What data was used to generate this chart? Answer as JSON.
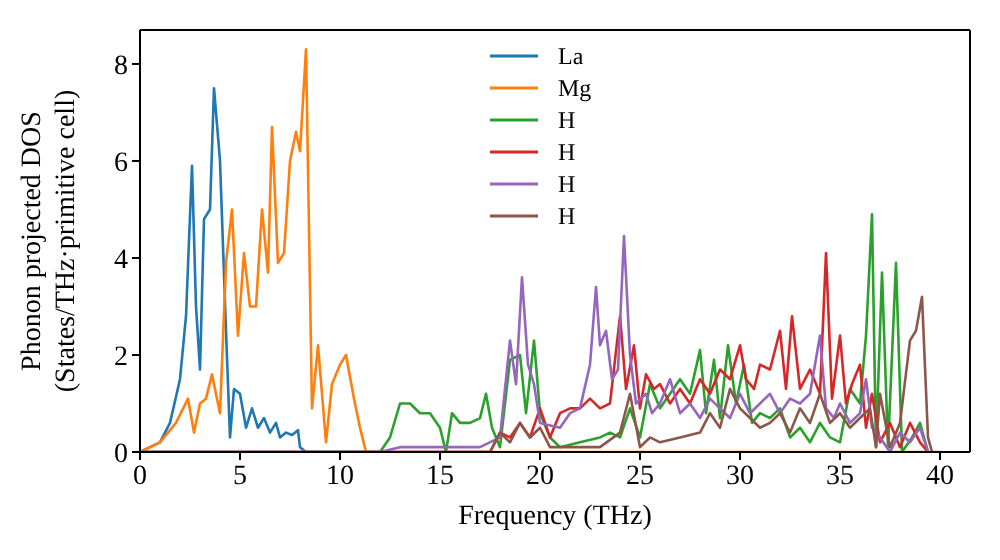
{
  "chart_data": {
    "type": "line",
    "xlabel": "Frequency (THz)",
    "ylabel": "Phonon projected DOS\n(States/THz·primitive cell)",
    "xlim": [
      0,
      41.5
    ],
    "ylim": [
      0,
      8.7
    ],
    "xticks": [
      0,
      5,
      10,
      15,
      20,
      25,
      30,
      35,
      40
    ],
    "yticks": [
      0,
      2,
      4,
      6,
      8
    ],
    "legend": "top",
    "marker": "none",
    "line_style": "solid",
    "series": [
      {
        "name": "La",
        "color": "#1f77b4",
        "x": [
          0,
          1,
          1.5,
          2,
          2.3,
          2.6,
          2.8,
          3,
          3.2,
          3.5,
          3.7,
          4,
          4.3,
          4.5,
          4.7,
          5,
          5.3,
          5.6,
          5.9,
          6.2,
          6.5,
          6.8,
          7,
          7.3,
          7.6,
          7.9,
          8,
          8.3,
          12
        ],
        "values": [
          0,
          0.2,
          0.6,
          1.5,
          2.8,
          5.9,
          3,
          1.7,
          4.8,
          5,
          7.5,
          6,
          2.5,
          0.3,
          1.3,
          1.2,
          0.5,
          0.9,
          0.5,
          0.7,
          0.4,
          0.6,
          0.3,
          0.4,
          0.35,
          0.45,
          0.1,
          0,
          0
        ]
      },
      {
        "name": "Mg",
        "color": "#ff7f0e",
        "x": [
          0,
          1,
          1.8,
          2.4,
          2.7,
          3,
          3.3,
          3.6,
          4,
          4.3,
          4.6,
          4.9,
          5.2,
          5.5,
          5.8,
          6.1,
          6.4,
          6.6,
          6.9,
          7.2,
          7.5,
          7.8,
          8,
          8.3,
          8.6,
          8.9,
          9.3,
          9.6,
          10,
          10.3,
          10.7,
          11,
          11.3,
          40
        ],
        "values": [
          0,
          0.2,
          0.6,
          1.1,
          0.4,
          1.0,
          1.1,
          1.6,
          0.8,
          3.9,
          5,
          2.4,
          4.1,
          3,
          3,
          5,
          3.7,
          6.7,
          3.9,
          4.1,
          6,
          6.6,
          6.2,
          8.3,
          0.9,
          2.2,
          0.2,
          1.4,
          1.8,
          2.0,
          1.1,
          0.5,
          0,
          0
        ]
      },
      {
        "name": "H",
        "color": "#2ca02c",
        "x": [
          0,
          12,
          12.5,
          13,
          13.5,
          14,
          14.5,
          15,
          15.3,
          15.6,
          16,
          16.5,
          17,
          17.3,
          17.6,
          18,
          18.5,
          19,
          19.3,
          19.7,
          20,
          20.5,
          21,
          22,
          23,
          23.5,
          24,
          24.5,
          25,
          25.5,
          26,
          26.5,
          27,
          27.5,
          28,
          28.3,
          28.7,
          29,
          29.4,
          29.8,
          30.2,
          30.6,
          31,
          31.5,
          32,
          32.5,
          33,
          33.5,
          34,
          34.5,
          35,
          35.5,
          36,
          36.3,
          36.6,
          36.8,
          37.1,
          37.4,
          37.8,
          38.1,
          38.6,
          39,
          39.4
        ],
        "values": [
          0,
          0,
          0.3,
          1.0,
          1.0,
          0.8,
          0.8,
          0.5,
          0,
          0.8,
          0.6,
          0.6,
          0.7,
          1.2,
          0.5,
          0.1,
          1.9,
          2.0,
          0.8,
          2.3,
          0.8,
          0.3,
          0.1,
          0.2,
          0.3,
          0.4,
          0.3,
          0.9,
          0.3,
          1.4,
          0.9,
          1.2,
          1.5,
          1.2,
          2.1,
          0.8,
          1.9,
          0.7,
          2.2,
          1.0,
          1.8,
          0.6,
          0.8,
          0.7,
          0.9,
          0.3,
          0.5,
          0.2,
          0.6,
          0.3,
          0.2,
          1.3,
          1.0,
          2.4,
          4.9,
          0.1,
          3.7,
          0.1,
          3.9,
          0,
          0.3,
          0.6,
          0
        ]
      },
      {
        "name": "H",
        "color": "#d62728",
        "x": [
          0,
          17.5,
          18,
          18.5,
          19,
          19.5,
          20,
          20.5,
          21,
          21.5,
          22,
          22.5,
          23,
          23.5,
          24,
          24.3,
          24.7,
          25,
          25.3,
          25.7,
          26,
          26.5,
          27,
          27.5,
          28,
          28.5,
          29,
          29.5,
          30,
          30.3,
          30.7,
          31,
          31.5,
          32,
          32.3,
          32.6,
          33,
          33.5,
          34,
          34.3,
          34.6,
          35,
          35.3,
          35.6,
          36,
          36.3,
          36.6,
          37,
          37.5,
          38,
          38.5,
          39,
          39.4
        ],
        "values": [
          0,
          0,
          0.4,
          0.3,
          0.6,
          0.3,
          0.9,
          0.3,
          0.8,
          0.9,
          0.9,
          1.1,
          0.9,
          1.0,
          2.8,
          1.3,
          2.2,
          0.9,
          1.6,
          1.3,
          1.4,
          1.0,
          1.3,
          1.0,
          1.5,
          1.2,
          1.7,
          1.5,
          2.2,
          1.5,
          1.3,
          1.8,
          1.7,
          2.5,
          1.3,
          2.8,
          1.3,
          1.7,
          1.2,
          4.1,
          1.1,
          2.4,
          1.0,
          1.4,
          1.8,
          0.5,
          1.2,
          0.2,
          0.6,
          0.1,
          0.6,
          0.2,
          0
        ]
      },
      {
        "name": "H",
        "color": "#9467bd",
        "x": [
          0,
          12,
          13,
          17,
          18,
          18.5,
          18.8,
          19.1,
          19.4,
          19.7,
          20,
          21,
          21.5,
          22,
          22.5,
          22.8,
          23,
          23.3,
          23.6,
          23.9,
          24.2,
          24.5,
          24.8,
          25.3,
          25.6,
          26,
          26.5,
          27,
          27.5,
          28,
          28.5,
          29,
          29.5,
          30,
          30.5,
          31,
          31.5,
          32,
          32.5,
          33,
          33.5,
          34,
          34.3,
          34.7,
          35,
          35.5,
          36,
          36.3,
          36.6,
          37,
          37.5,
          38,
          38.5,
          39,
          39.4
        ],
        "values": [
          0,
          0,
          0.1,
          0.1,
          0.3,
          2.3,
          1.4,
          3.6,
          1.8,
          1.4,
          0.6,
          0.5,
          0.8,
          0.9,
          1.8,
          3.4,
          2.2,
          2.5,
          1.5,
          1.7,
          4.45,
          2.0,
          1.0,
          1.2,
          0.8,
          1.0,
          1.5,
          0.8,
          1.0,
          0.7,
          1.1,
          0.9,
          0.7,
          1.2,
          0.8,
          1.0,
          1.2,
          0.8,
          1.1,
          1.0,
          1.2,
          2.4,
          0.9,
          0.7,
          1.0,
          0.6,
          0.8,
          1.5,
          0.5,
          0.3,
          0,
          0.4,
          0.2,
          0.5,
          0
        ]
      },
      {
        "name": "H",
        "color": "#8c564b",
        "x": [
          0,
          17.5,
          18,
          18.5,
          19,
          19.5,
          20,
          20.5,
          22,
          23,
          24,
          24.5,
          25,
          25.5,
          26,
          27,
          28,
          28.5,
          29,
          29.5,
          30,
          30.5,
          31,
          31.5,
          32,
          32.5,
          33,
          33.5,
          34,
          34.5,
          35,
          35.5,
          36,
          36.5,
          36.8,
          37,
          37.5,
          38,
          38.5,
          38.8,
          39.1,
          39.4,
          39.6
        ],
        "values": [
          0,
          0,
          0.4,
          0.2,
          0.6,
          0.3,
          0.5,
          0.1,
          0.1,
          0.1,
          0.4,
          1.2,
          0.1,
          0.3,
          0.2,
          0.3,
          0.4,
          0.8,
          0.5,
          1.3,
          0.9,
          0.7,
          0.5,
          0.6,
          0.8,
          0.4,
          0.9,
          0.6,
          1.2,
          0.6,
          0.8,
          0.5,
          0.7,
          0.9,
          0.1,
          1.2,
          0.1,
          0.6,
          2.3,
          2.5,
          3.2,
          0.3,
          0
        ]
      }
    ]
  }
}
